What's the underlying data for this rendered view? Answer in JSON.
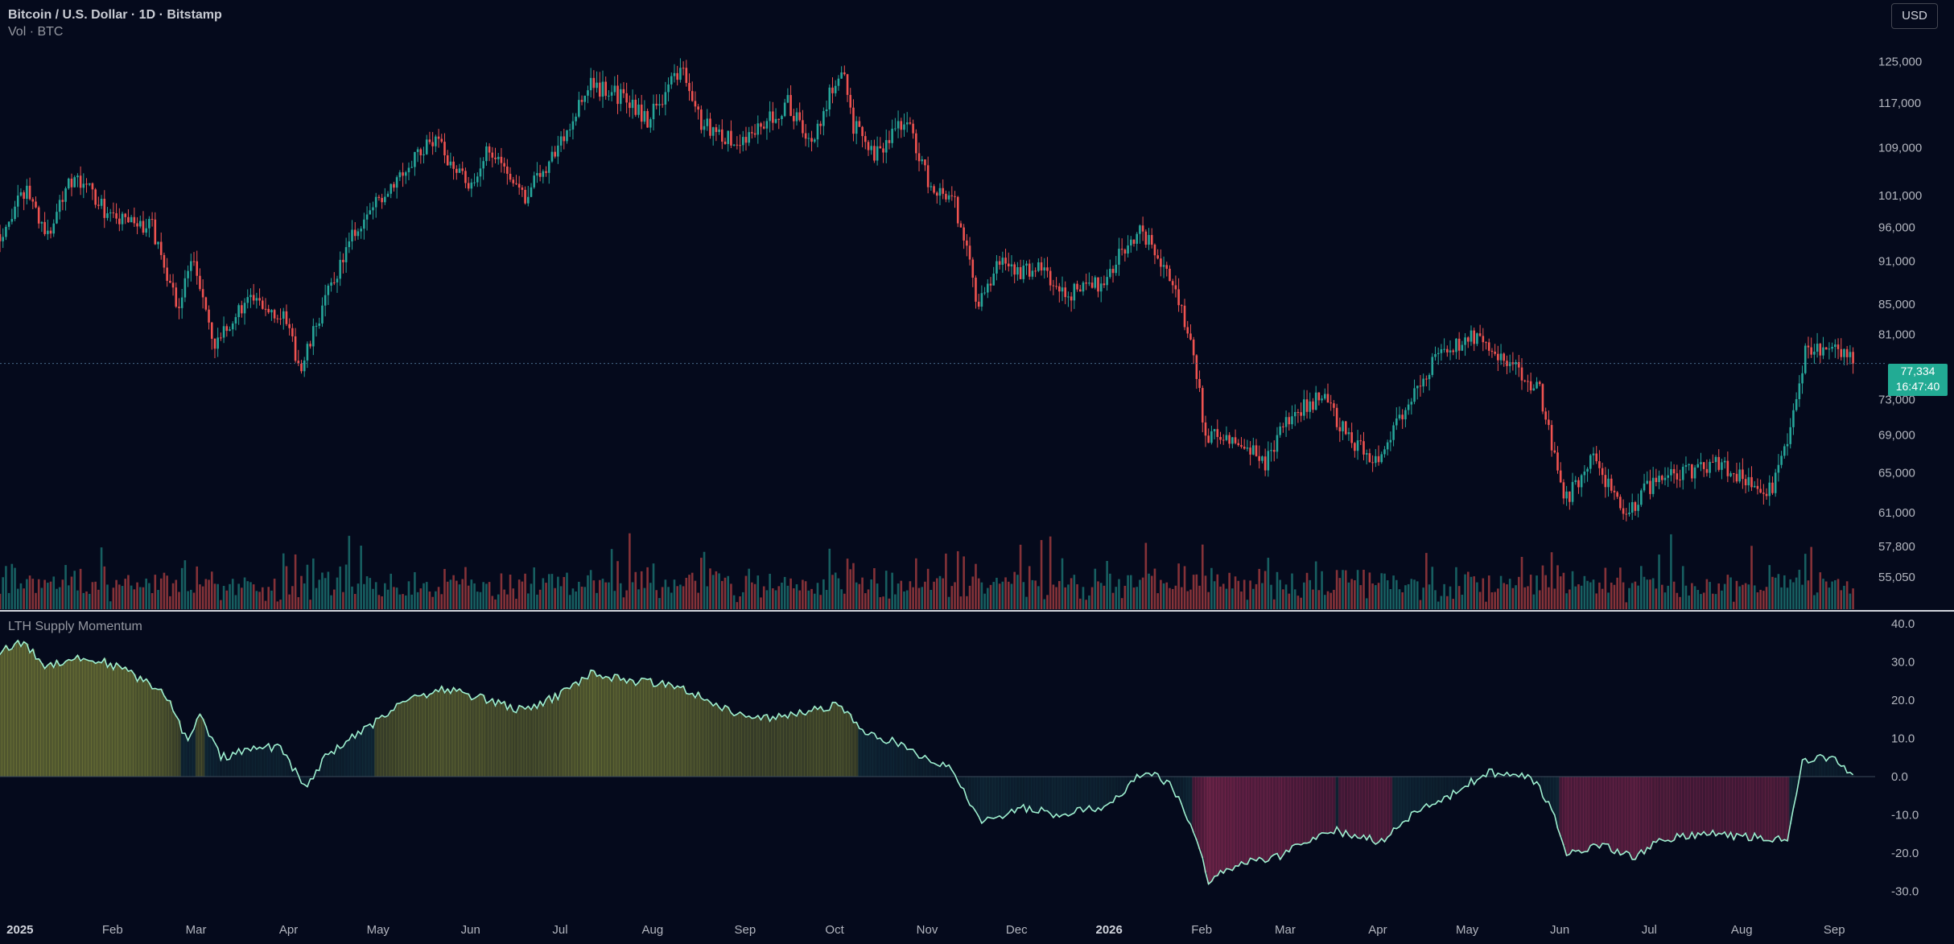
{
  "header": {
    "title": "Bitcoin / U.S. Dollar · 1D · Bitstamp",
    "volume_label": "Vol · BTC",
    "currency_button": "USD"
  },
  "indicator": {
    "title": "LTH Supply Momentum"
  },
  "current": {
    "price": "77,334",
    "countdown": "16:47:40"
  },
  "colors": {
    "background": "#050a1c",
    "up": "#26a69a",
    "down": "#ef5350",
    "osc_line": "#9ef0d0",
    "osc_positive": "#b9c24a",
    "osc_negative": "#e0407a"
  },
  "chart_data": [
    {
      "type": "candlestick",
      "title": "Bitcoin / U.S. Dollar · 1D · Bitstamp",
      "x_labels": [
        "2025",
        "Feb",
        "Mar",
        "Apr",
        "May",
        "Jun",
        "Jul",
        "Aug",
        "Sep",
        "Oct",
        "Nov",
        "Dec",
        "2026",
        "Feb",
        "Mar",
        "Apr",
        "May",
        "Jun",
        "Jul",
        "Aug",
        "Sep"
      ],
      "y_ticks": [
        125000,
        117000,
        109000,
        101000,
        96000,
        91000,
        85000,
        81000,
        73000,
        69000,
        65000,
        61000,
        57800,
        55050
      ],
      "y_scale": "log",
      "ylim": [
        53800,
        128500
      ],
      "last_price": 77334,
      "close_path": [
        {
          "x": "2024-12-28",
          "y": 95000
        },
        {
          "x": "2025-01-06",
          "y": 102000
        },
        {
          "x": "2025-01-13",
          "y": 94500
        },
        {
          "x": "2025-01-20",
          "y": 104000
        },
        {
          "x": "2025-01-27",
          "y": 102000
        },
        {
          "x": "2025-02-03",
          "y": 97500
        },
        {
          "x": "2025-02-17",
          "y": 96000
        },
        {
          "x": "2025-02-26",
          "y": 84000
        },
        {
          "x": "2025-03-02",
          "y": 92000
        },
        {
          "x": "2025-03-10",
          "y": 79000
        },
        {
          "x": "2025-03-20",
          "y": 85500
        },
        {
          "x": "2025-04-01",
          "y": 84000
        },
        {
          "x": "2025-04-08",
          "y": 76500
        },
        {
          "x": "2025-04-15",
          "y": 84500
        },
        {
          "x": "2025-04-25",
          "y": 94500
        },
        {
          "x": "2025-05-08",
          "y": 103000
        },
        {
          "x": "2025-05-22",
          "y": 110500
        },
        {
          "x": "2025-06-05",
          "y": 102000
        },
        {
          "x": "2025-06-10",
          "y": 109500
        },
        {
          "x": "2025-06-22",
          "y": 101000
        },
        {
          "x": "2025-07-03",
          "y": 109000
        },
        {
          "x": "2025-07-14",
          "y": 120500
        },
        {
          "x": "2025-07-25",
          "y": 118000
        },
        {
          "x": "2025-08-02",
          "y": 114000
        },
        {
          "x": "2025-08-13",
          "y": 123500
        },
        {
          "x": "2025-08-20",
          "y": 113500
        },
        {
          "x": "2025-09-01",
          "y": 109500
        },
        {
          "x": "2025-09-18",
          "y": 117000
        },
        {
          "x": "2025-09-26",
          "y": 109500
        },
        {
          "x": "2025-10-06",
          "y": 124500
        },
        {
          "x": "2025-10-10",
          "y": 113000
        },
        {
          "x": "2025-10-17",
          "y": 107000
        },
        {
          "x": "2025-10-27",
          "y": 114500
        },
        {
          "x": "2025-11-04",
          "y": 103500
        },
        {
          "x": "2025-11-13",
          "y": 99500
        },
        {
          "x": "2025-11-21",
          "y": 84500
        },
        {
          "x": "2025-11-28",
          "y": 91000
        },
        {
          "x": "2025-12-05",
          "y": 89500
        },
        {
          "x": "2025-12-12",
          "y": 90500
        },
        {
          "x": "2025-12-18",
          "y": 86000
        },
        {
          "x": "2026-01-01",
          "y": 88000
        },
        {
          "x": "2026-01-14",
          "y": 96000
        },
        {
          "x": "2026-01-25",
          "y": 88500
        },
        {
          "x": "2026-02-01",
          "y": 78500
        },
        {
          "x": "2026-02-05",
          "y": 69000
        },
        {
          "x": "2026-02-15",
          "y": 68500
        },
        {
          "x": "2026-02-25",
          "y": 66000
        },
        {
          "x": "2026-03-05",
          "y": 71000
        },
        {
          "x": "2026-03-16",
          "y": 73500
        },
        {
          "x": "2026-03-25",
          "y": 68500
        },
        {
          "x": "2026-04-03",
          "y": 66500
        },
        {
          "x": "2026-04-10",
          "y": 70000
        },
        {
          "x": "2026-04-22",
          "y": 77500
        },
        {
          "x": "2026-05-05",
          "y": 80500
        },
        {
          "x": "2026-05-12",
          "y": 79000
        },
        {
          "x": "2026-05-20",
          "y": 76500
        },
        {
          "x": "2026-05-28",
          "y": 74000
        },
        {
          "x": "2026-06-05",
          "y": 62000
        },
        {
          "x": "2026-06-15",
          "y": 66500
        },
        {
          "x": "2026-06-25",
          "y": 60500
        },
        {
          "x": "2026-07-03",
          "y": 63500
        },
        {
          "x": "2026-07-15",
          "y": 65000
        },
        {
          "x": "2026-07-25",
          "y": 66000
        },
        {
          "x": "2026-08-05",
          "y": 64500
        },
        {
          "x": "2026-08-14",
          "y": 63000
        },
        {
          "x": "2026-08-21",
          "y": 71000
        },
        {
          "x": "2026-08-25",
          "y": 78500
        },
        {
          "x": "2026-09-01",
          "y": 79000
        },
        {
          "x": "2026-09-05",
          "y": 79500
        },
        {
          "x": "2026-09-10",
          "y": 77334
        }
      ]
    },
    {
      "type": "bar",
      "title": "Vol · BTC",
      "series": [
        {
          "values": "daily volume bars colored by candle direction"
        }
      ]
    },
    {
      "type": "area",
      "title": "LTH Supply Momentum",
      "y_ticks": [
        40.0,
        30.0,
        20.0,
        10.0,
        0.0,
        -10.0,
        -20.0,
        -30.0
      ],
      "ylim": [
        -32,
        40
      ],
      "baseline": 0,
      "series_path": [
        {
          "x": "2024-12-28",
          "y": 33
        },
        {
          "x": "2025-01-05",
          "y": 35
        },
        {
          "x": "2025-01-12",
          "y": 29
        },
        {
          "x": "2025-01-22",
          "y": 31
        },
        {
          "x": "2025-02-01",
          "y": 30
        },
        {
          "x": "2025-02-10",
          "y": 27
        },
        {
          "x": "2025-02-22",
          "y": 21
        },
        {
          "x": "2025-03-01",
          "y": 9
        },
        {
          "x": "2025-03-05",
          "y": 16
        },
        {
          "x": "2025-03-12",
          "y": 5
        },
        {
          "x": "2025-03-22",
          "y": 7
        },
        {
          "x": "2025-04-01",
          "y": 8
        },
        {
          "x": "2025-04-09",
          "y": -3
        },
        {
          "x": "2025-04-17",
          "y": 6
        },
        {
          "x": "2025-05-01",
          "y": 13
        },
        {
          "x": "2025-05-12",
          "y": 20
        },
        {
          "x": "2025-05-26",
          "y": 23
        },
        {
          "x": "2025-06-10",
          "y": 20
        },
        {
          "x": "2025-06-22",
          "y": 17
        },
        {
          "x": "2025-07-05",
          "y": 22
        },
        {
          "x": "2025-07-14",
          "y": 27
        },
        {
          "x": "2025-07-28",
          "y": 25
        },
        {
          "x": "2025-08-12",
          "y": 24
        },
        {
          "x": "2025-08-22",
          "y": 20
        },
        {
          "x": "2025-09-05",
          "y": 15
        },
        {
          "x": "2025-09-20",
          "y": 16
        },
        {
          "x": "2025-10-05",
          "y": 19
        },
        {
          "x": "2025-10-14",
          "y": 11
        },
        {
          "x": "2025-10-24",
          "y": 9
        },
        {
          "x": "2025-11-05",
          "y": 4
        },
        {
          "x": "2025-11-12",
          "y": 2
        },
        {
          "x": "2025-11-22",
          "y": -12
        },
        {
          "x": "2025-12-05",
          "y": -8
        },
        {
          "x": "2025-12-18",
          "y": -10
        },
        {
          "x": "2026-01-01",
          "y": -8
        },
        {
          "x": "2026-01-10",
          "y": -3
        },
        {
          "x": "2026-01-16",
          "y": 2
        },
        {
          "x": "2026-01-25",
          "y": -3
        },
        {
          "x": "2026-02-02",
          "y": -16
        },
        {
          "x": "2026-02-06",
          "y": -27
        },
        {
          "x": "2026-02-18",
          "y": -22
        },
        {
          "x": "2026-03-02",
          "y": -21
        },
        {
          "x": "2026-03-10",
          "y": -17
        },
        {
          "x": "2026-03-20",
          "y": -14
        },
        {
          "x": "2026-04-05",
          "y": -17
        },
        {
          "x": "2026-04-15",
          "y": -10
        },
        {
          "x": "2026-04-28",
          "y": -5
        },
        {
          "x": "2026-05-10",
          "y": 1
        },
        {
          "x": "2026-05-25",
          "y": 0
        },
        {
          "x": "2026-06-01",
          "y": -8
        },
        {
          "x": "2026-06-06",
          "y": -20
        },
        {
          "x": "2026-06-18",
          "y": -18
        },
        {
          "x": "2026-06-28",
          "y": -21
        },
        {
          "x": "2026-07-10",
          "y": -16
        },
        {
          "x": "2026-07-25",
          "y": -15
        },
        {
          "x": "2026-08-10",
          "y": -16
        },
        {
          "x": "2026-08-19",
          "y": -16
        },
        {
          "x": "2026-08-24",
          "y": 4
        },
        {
          "x": "2026-09-02",
          "y": 5
        },
        {
          "x": "2026-09-10",
          "y": 1
        }
      ]
    }
  ]
}
